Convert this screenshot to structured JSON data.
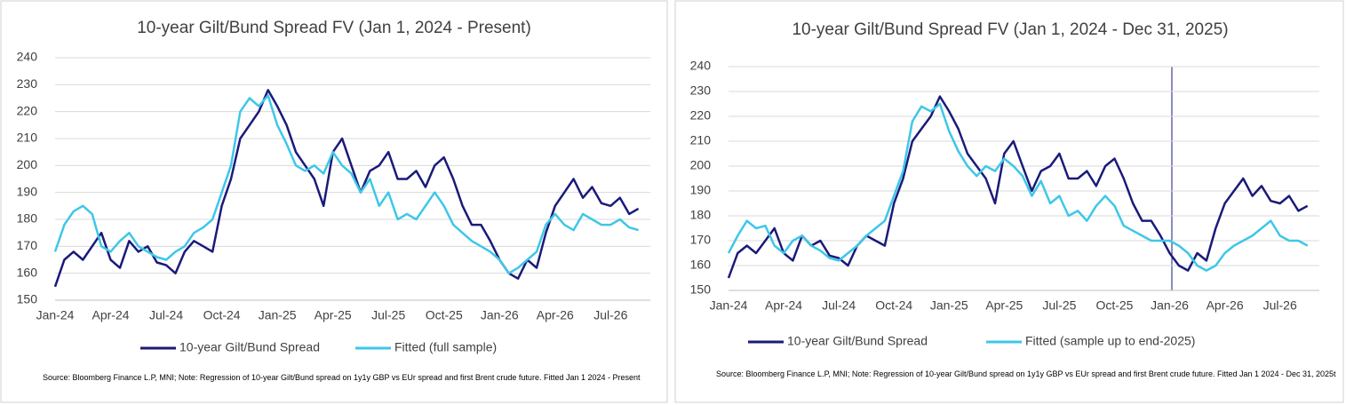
{
  "chart_data": [
    {
      "type": "line",
      "title": "10-year Gilt/Bund Spread FV (Jan 1, 2024 - Present)",
      "categories": [
        "Jan-24",
        null,
        null,
        null,
        null,
        null,
        "Apr-24",
        null,
        null,
        null,
        null,
        null,
        "Jul-24",
        null,
        null,
        null,
        null,
        null,
        "Oct-24",
        null,
        null,
        null,
        null,
        null,
        "Jan-25",
        null,
        null,
        null,
        null,
        null,
        "Apr-25",
        null,
        null,
        null,
        null,
        null,
        "Jul-25",
        null,
        null,
        null,
        null,
        null,
        "Oct-25",
        null,
        null,
        null,
        null,
        null,
        "Jan-26",
        null,
        null,
        null,
        null,
        null,
        "Apr-26",
        null,
        null,
        null,
        null,
        null,
        "Jul-26",
        null,
        null,
        null
      ],
      "series": [
        {
          "name": "10-year Gilt/Bund Spread",
          "color": "#1a1a7a",
          "values": [
            155,
            165,
            168,
            165,
            170,
            175,
            165,
            162,
            172,
            168,
            170,
            164,
            163,
            160,
            168,
            172,
            170,
            168,
            185,
            195,
            210,
            215,
            220,
            228,
            222,
            215,
            205,
            200,
            195,
            185,
            205,
            210,
            200,
            190,
            198,
            200,
            205,
            195,
            195,
            198,
            192,
            200,
            203,
            195,
            185,
            178,
            178,
            172,
            165,
            160,
            158,
            165,
            162,
            175,
            185,
            190,
            195,
            188,
            192,
            186,
            185,
            188,
            182,
            184
          ]
        },
        {
          "name": "Fitted (full sample)",
          "color": "#3ec7e8",
          "values": [
            168,
            178,
            183,
            185,
            182,
            170,
            168,
            172,
            175,
            170,
            168,
            166,
            165,
            168,
            170,
            175,
            177,
            180,
            190,
            200,
            220,
            225,
            222,
            226,
            215,
            208,
            200,
            198,
            200,
            197,
            205,
            200,
            197,
            190,
            195,
            185,
            190,
            180,
            182,
            180,
            185,
            190,
            185,
            178,
            175,
            172,
            170,
            168,
            165,
            160,
            162,
            165,
            168,
            178,
            182,
            178,
            176,
            182,
            180,
            178,
            178,
            180,
            177,
            176
          ]
        }
      ],
      "ylim": [
        150,
        240
      ],
      "yticks": [
        150,
        160,
        170,
        180,
        190,
        200,
        210,
        220,
        230,
        240
      ],
      "note": "Source: Bloomberg Finance L.P, MNI; Note: Regression of 10-year Gilt/Bund spread on 1y1y GBP vs EUr spread and first Brent crude future. Fitted Jan 1 2024 - Present"
    },
    {
      "type": "line",
      "title": "10-year Gilt/Bund Spread FV (Jan 1, 2024 - Dec 31, 2025)",
      "categories": [
        "Jan-24",
        null,
        null,
        null,
        null,
        null,
        "Apr-24",
        null,
        null,
        null,
        null,
        null,
        "Jul-24",
        null,
        null,
        null,
        null,
        null,
        "Oct-24",
        null,
        null,
        null,
        null,
        null,
        "Jan-25",
        null,
        null,
        null,
        null,
        null,
        "Apr-25",
        null,
        null,
        null,
        null,
        null,
        "Jul-25",
        null,
        null,
        null,
        null,
        null,
        "Oct-25",
        null,
        null,
        null,
        null,
        null,
        "Jan-26",
        null,
        null,
        null,
        null,
        null,
        "Apr-26",
        null,
        null,
        null,
        null,
        null,
        "Jul-26",
        null,
        null,
        null
      ],
      "series": [
        {
          "name": "10-year Gilt/Bund Spread",
          "color": "#1a1a7a",
          "values": [
            155,
            165,
            168,
            165,
            170,
            175,
            165,
            162,
            172,
            168,
            170,
            164,
            163,
            160,
            168,
            172,
            170,
            168,
            185,
            195,
            210,
            215,
            220,
            228,
            222,
            215,
            205,
            200,
            195,
            185,
            205,
            210,
            200,
            190,
            198,
            200,
            205,
            195,
            195,
            198,
            192,
            200,
            203,
            195,
            185,
            178,
            178,
            172,
            165,
            160,
            158,
            165,
            162,
            175,
            185,
            190,
            195,
            188,
            192,
            186,
            185,
            188,
            182,
            184
          ]
        },
        {
          "name": "Fitted (sample up to end-2025)",
          "color": "#3ec7e8",
          "values": [
            165,
            172,
            178,
            175,
            176,
            168,
            165,
            170,
            172,
            168,
            166,
            163,
            162,
            165,
            168,
            172,
            175,
            178,
            188,
            198,
            218,
            224,
            222,
            225,
            214,
            206,
            200,
            196,
            200,
            198,
            203,
            200,
            196,
            188,
            194,
            185,
            188,
            180,
            182,
            178,
            184,
            188,
            184,
            176,
            174,
            172,
            170,
            170,
            170,
            168,
            165,
            160,
            158,
            160,
            165,
            168,
            170,
            172,
            175,
            178,
            172,
            170,
            170,
            168
          ]
        }
      ],
      "ylim": [
        150,
        240
      ],
      "yticks": [
        150,
        160,
        170,
        180,
        190,
        200,
        210,
        220,
        230,
        240
      ],
      "note": "Source: Bloomberg Finance L.P, MNI; Note: Regression of 10-year Gilt/Bund spread on 1y1y GBP vs EUr spread and first Brent crude future. Fitted Jan 1 2024 - Dec 31, 2025t"
    }
  ]
}
